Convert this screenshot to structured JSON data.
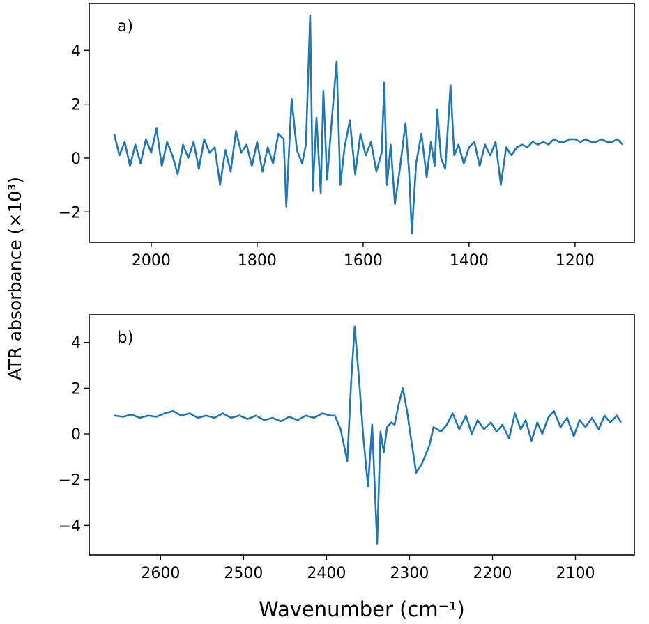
{
  "chart_data": [
    {
      "type": "line",
      "annotation": "a)",
      "ylabel": "ATR absorbance (×10³)",
      "color": "#1f77b4",
      "xlim": [
        2117,
        1088
      ],
      "ylim": [
        -3.13,
        5.74
      ],
      "xticks": [
        2000,
        1800,
        1600,
        1400,
        1200
      ],
      "yticks": [
        {
          "value": -2,
          "label": "−2"
        },
        0,
        2,
        4
      ],
      "x": [
        2070,
        2060,
        2050,
        2040,
        2030,
        2020,
        2010,
        2000,
        1990,
        1980,
        1970,
        1960,
        1950,
        1940,
        1930,
        1920,
        1910,
        1900,
        1890,
        1880,
        1870,
        1860,
        1850,
        1840,
        1830,
        1820,
        1810,
        1800,
        1790,
        1780,
        1770,
        1760,
        1750,
        1745,
        1735,
        1725,
        1715,
        1708,
        1700,
        1695,
        1688,
        1680,
        1675,
        1668,
        1660,
        1650,
        1643,
        1635,
        1625,
        1615,
        1605,
        1595,
        1585,
        1575,
        1565,
        1560,
        1555,
        1548,
        1540,
        1530,
        1520,
        1513,
        1508,
        1500,
        1490,
        1480,
        1472,
        1465,
        1460,
        1453,
        1445,
        1435,
        1428,
        1420,
        1410,
        1400,
        1390,
        1380,
        1370,
        1360,
        1350,
        1340,
        1330,
        1320,
        1310,
        1300,
        1290,
        1280,
        1270,
        1260,
        1250,
        1240,
        1230,
        1220,
        1210,
        1200,
        1190,
        1180,
        1170,
        1160,
        1150,
        1140,
        1130,
        1120,
        1110
      ],
      "values": [
        0.9,
        0.1,
        0.6,
        -0.3,
        0.5,
        -0.2,
        0.7,
        0.2,
        1.1,
        -0.3,
        0.6,
        0.1,
        -0.6,
        0.5,
        0.0,
        0.6,
        -0.4,
        0.7,
        0.2,
        0.4,
        -1.0,
        0.3,
        -0.5,
        1.0,
        0.2,
        0.5,
        -0.3,
        0.6,
        -0.5,
        0.4,
        -0.2,
        0.9,
        0.7,
        -1.8,
        2.2,
        0.3,
        -0.2,
        0.5,
        5.3,
        -1.2,
        1.5,
        -1.3,
        2.5,
        -0.8,
        1.2,
        3.6,
        -1.0,
        0.4,
        1.4,
        -0.6,
        0.9,
        0.1,
        0.6,
        -0.5,
        0.2,
        2.8,
        -1.0,
        0.5,
        -1.7,
        -0.3,
        1.3,
        -0.6,
        -2.8,
        -0.2,
        0.9,
        -0.7,
        0.6,
        -0.3,
        1.8,
        0.0,
        -0.4,
        2.7,
        0.1,
        0.5,
        -0.2,
        0.4,
        0.6,
        -0.3,
        0.5,
        0.1,
        0.6,
        -1.0,
        0.4,
        0.1,
        0.4,
        0.5,
        0.4,
        0.6,
        0.5,
        0.6,
        0.5,
        0.7,
        0.6,
        0.6,
        0.7,
        0.7,
        0.6,
        0.7,
        0.6,
        0.6,
        0.7,
        0.6,
        0.6,
        0.7,
        0.5
      ]
    },
    {
      "type": "line",
      "annotation": "b)",
      "xlabel": "Wavenumber (cm⁻¹)",
      "color": "#1f77b4",
      "xlim": [
        2686,
        2029
      ],
      "ylim": [
        -5.3,
        5.21
      ],
      "xticks": [
        2600,
        2500,
        2400,
        2300,
        2200,
        2100
      ],
      "yticks": [
        {
          "value": -4,
          "label": "−4"
        },
        {
          "value": -2,
          "label": "−2"
        },
        0,
        2,
        4
      ],
      "x": [
        2656,
        2645,
        2635,
        2625,
        2615,
        2605,
        2595,
        2585,
        2575,
        2565,
        2555,
        2545,
        2535,
        2525,
        2515,
        2505,
        2495,
        2485,
        2475,
        2465,
        2455,
        2445,
        2435,
        2425,
        2415,
        2405,
        2395,
        2390,
        2383,
        2375,
        2370,
        2366,
        2360,
        2356,
        2350,
        2345,
        2339,
        2335,
        2331,
        2327,
        2322,
        2318,
        2313,
        2308,
        2303,
        2297,
        2292,
        2285,
        2276,
        2271,
        2262,
        2255,
        2248,
        2240,
        2232,
        2225,
        2218,
        2210,
        2202,
        2195,
        2188,
        2180,
        2173,
        2166,
        2160,
        2153,
        2146,
        2140,
        2133,
        2126,
        2118,
        2110,
        2102,
        2095,
        2088,
        2080,
        2072,
        2065,
        2058,
        2050,
        2045
      ],
      "values": [
        0.8,
        0.75,
        0.85,
        0.7,
        0.8,
        0.75,
        0.9,
        1.0,
        0.8,
        0.9,
        0.7,
        0.8,
        0.7,
        0.9,
        0.7,
        0.8,
        0.65,
        0.8,
        0.6,
        0.7,
        0.55,
        0.75,
        0.6,
        0.8,
        0.7,
        0.9,
        0.8,
        0.8,
        0.2,
        -1.2,
        2.5,
        4.7,
        2.0,
        0.0,
        -2.3,
        0.4,
        -4.8,
        0.1,
        -0.8,
        0.3,
        0.5,
        0.4,
        1.3,
        2.0,
        1.0,
        -0.5,
        -1.7,
        -1.3,
        -0.5,
        0.3,
        0.1,
        0.4,
        0.9,
        0.2,
        0.8,
        0.0,
        0.6,
        0.2,
        0.5,
        0.1,
        0.4,
        -0.2,
        0.9,
        0.2,
        0.6,
        -0.3,
        0.5,
        0.0,
        0.7,
        1.0,
        0.3,
        0.7,
        -0.1,
        0.6,
        0.3,
        0.7,
        0.2,
        0.8,
        0.5,
        0.8,
        0.5
      ]
    }
  ]
}
